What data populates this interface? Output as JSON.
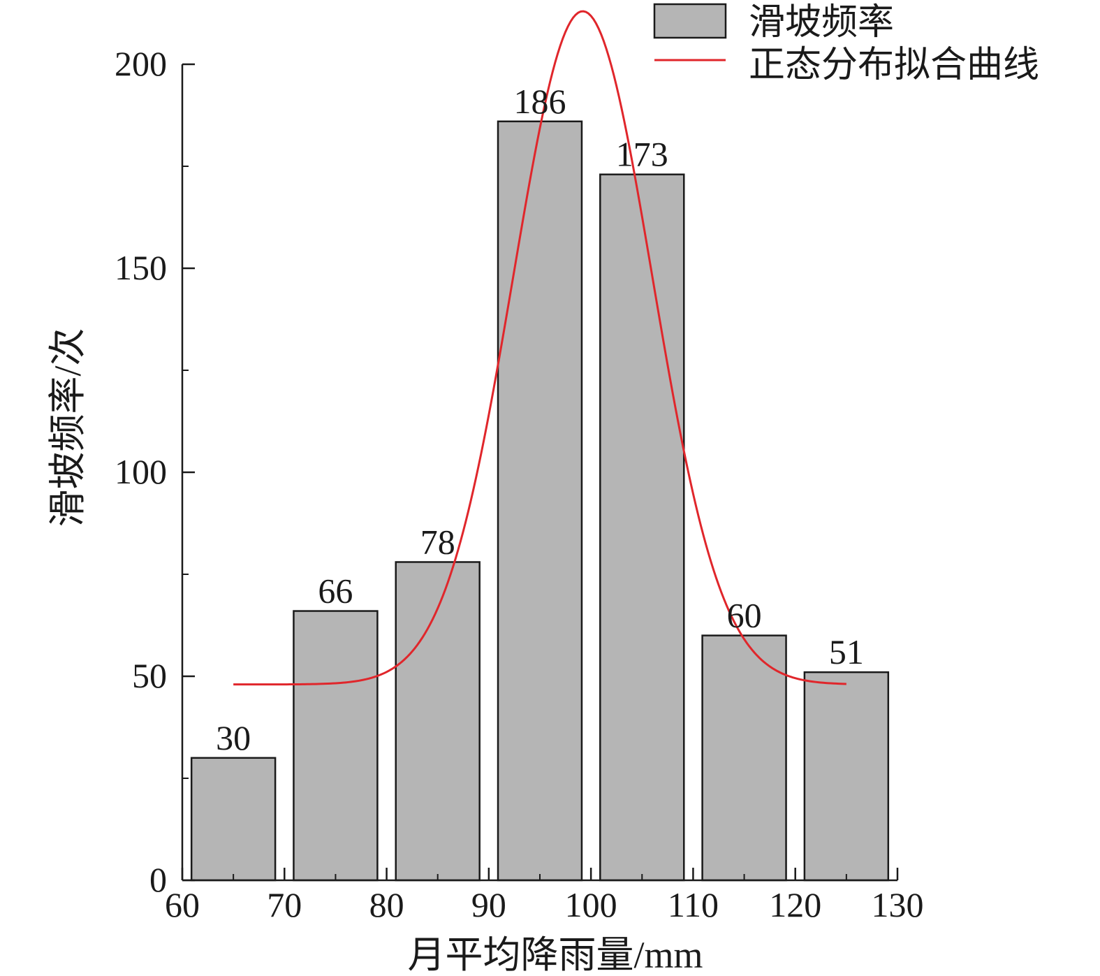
{
  "chart_data": {
    "type": "bar",
    "x": [
      65,
      75,
      85,
      95,
      105,
      115,
      125
    ],
    "values": [
      30,
      66,
      78,
      186,
      173,
      60,
      51
    ],
    "bin_width": 10,
    "xlim": [
      60,
      130
    ],
    "ylim": [
      0,
      210
    ],
    "xticks": [
      60,
      70,
      80,
      90,
      100,
      110,
      120,
      130
    ],
    "yticks": [
      0,
      50,
      100,
      150,
      200
    ],
    "xlabel": "月平均降雨量/mm",
    "ylabel": "滑坡频率/次",
    "series": [
      {
        "name": "滑坡频率",
        "type": "bar",
        "color": "#b5b5b5"
      },
      {
        "name": "正态分布拟合曲线",
        "type": "line",
        "color": "#e0262b",
        "fit": {
          "baseline": 48,
          "amplitude": 165,
          "mean": 99.2,
          "sigma": 6.8,
          "x_range": [
            65,
            125
          ]
        }
      }
    ],
    "legend": {
      "position": "top-right"
    },
    "grid": false
  }
}
